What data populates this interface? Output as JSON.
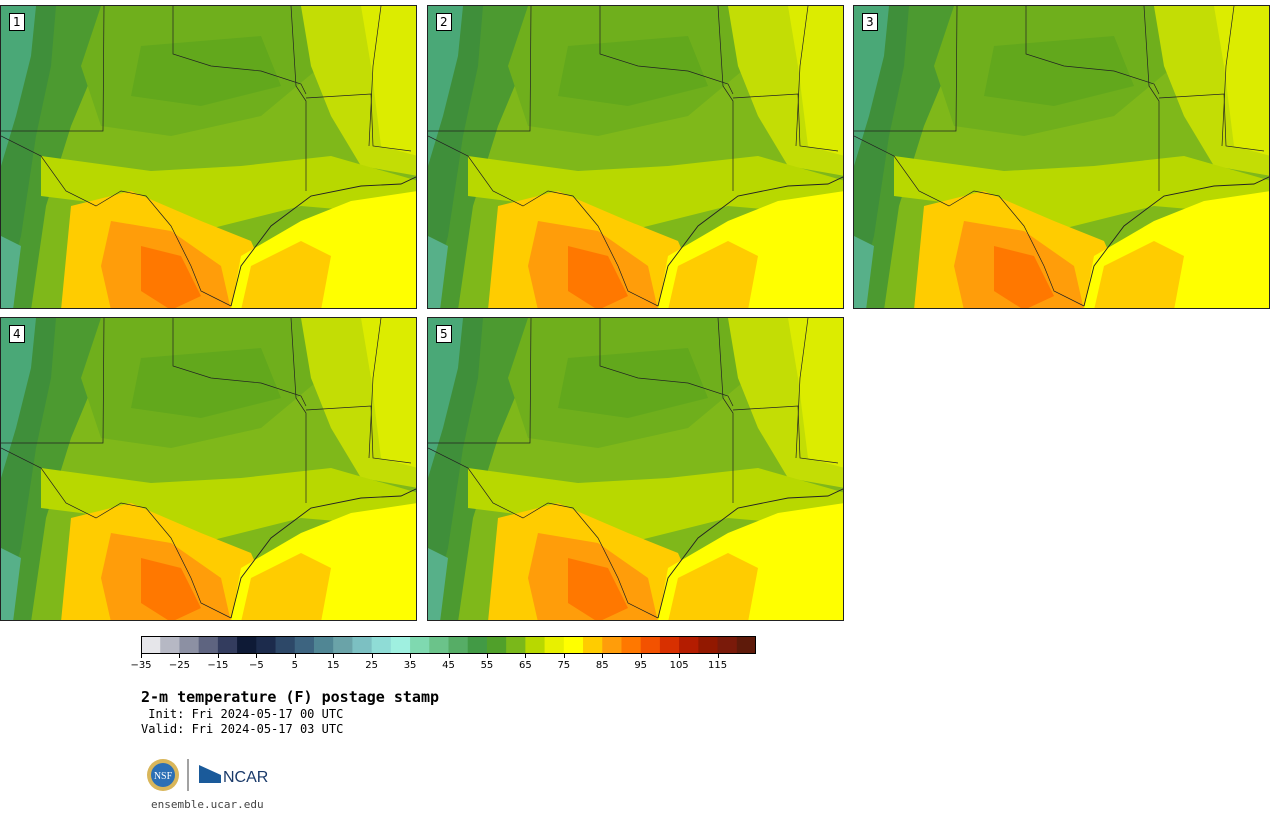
{
  "panels": [
    {
      "label": "1"
    },
    {
      "label": "2"
    },
    {
      "label": "3"
    },
    {
      "label": "4"
    },
    {
      "label": "5"
    }
  ],
  "colorbar": {
    "colors": [
      "#e6e6ea",
      "#b6b8c4",
      "#8c90a3",
      "#5e6480",
      "#333c5e",
      "#0e1a36",
      "#1c2b4c",
      "#2d4868",
      "#3d6480",
      "#508694",
      "#6aa3a8",
      "#7cc0c2",
      "#8fdcd6",
      "#9ff0e0",
      "#7fd9b0",
      "#6bc38a",
      "#56ad66",
      "#429a45",
      "#50a02a",
      "#7ab81a",
      "#b8d800",
      "#e8f000",
      "#ffff00",
      "#ffcc00",
      "#ff9d0a",
      "#ff7800",
      "#f35200",
      "#d83000",
      "#b41c00",
      "#921800",
      "#7a1a0a",
      "#5e1a0a"
    ],
    "tick_labels": [
      "−35",
      "−25",
      "−15",
      "−5",
      "5",
      "15",
      "25",
      "35",
      "45",
      "55",
      "65",
      "75",
      "85",
      "95",
      "105",
      "115"
    ]
  },
  "title": "2-m temperature (F) postage stamp",
  "init_line": " Init: Fri 2024-05-17 00 UTC",
  "valid_line": "Valid: Fri 2024-05-17 03 UTC",
  "logo": {
    "nsf_text": "NSF",
    "ncar_text": "NCAR"
  },
  "website": "ensemble.ucar.edu"
}
